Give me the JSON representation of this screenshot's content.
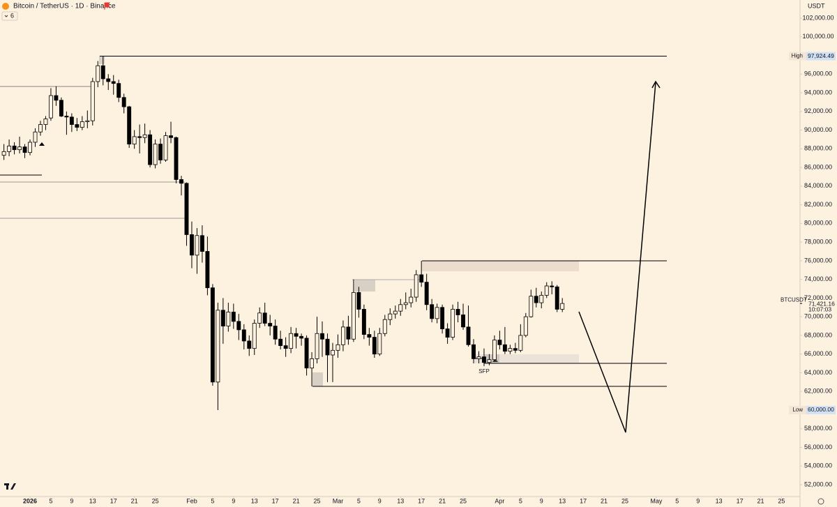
{
  "chart_data": {
    "type": "candlestick",
    "title": "Bitcoin / TetherUS · 1D · Binance",
    "indicator_count": 6,
    "ylabel": "USDT",
    "annotation": "SFP",
    "x": [
      -5,
      -4,
      -3,
      -2,
      -1,
      0,
      1,
      2,
      3,
      4,
      5,
      6,
      7,
      8,
      9,
      10,
      11,
      12,
      13,
      14,
      15,
      16,
      17,
      18,
      19,
      20,
      21,
      22,
      23,
      24,
      25,
      26,
      27,
      28,
      29,
      30,
      31,
      32,
      33,
      34,
      35,
      36,
      37,
      38,
      39,
      40,
      41,
      42,
      43,
      44,
      45,
      46,
      47,
      48,
      49,
      50,
      51,
      52,
      53,
      54,
      55,
      56,
      57,
      58,
      59,
      60,
      61,
      62,
      63,
      64,
      65,
      66,
      67,
      68,
      69,
      70,
      71,
      72,
      73,
      74,
      75,
      76,
      77,
      78,
      79,
      80,
      81,
      82,
      83,
      84,
      85,
      86,
      87,
      88,
      89,
      90,
      91,
      92,
      93,
      94,
      95,
      96,
      97,
      98,
      99,
      100,
      101,
      102
    ],
    "open": [
      87300,
      87700,
      88300,
      87900,
      88200,
      87600,
      88700,
      89800,
      90600,
      91300,
      93700,
      93200,
      91500,
      91400,
      90600,
      90300,
      90900,
      91000,
      95200,
      96900,
      95500,
      95200,
      95000,
      93500,
      92500,
      88500,
      89300,
      89200,
      89500,
      86300,
      88500,
      86800,
      89400,
      89200,
      84700,
      84300,
      78800,
      76600,
      78700,
      77000,
      73100,
      63000,
      70700,
      69000,
      70500,
      69500,
      68600,
      67400,
      66600,
      69300,
      70400,
      69300,
      69000,
      67600,
      66900,
      66600,
      68200,
      67900,
      67700,
      64500,
      65500,
      68200,
      67600,
      65900,
      66400,
      67000,
      68900,
      67600,
      72600,
      70800,
      68100,
      67800,
      66000,
      68200,
      69700,
      70300,
      70600,
      71300,
      71500,
      72100,
      74500,
      73700,
      71300,
      69800,
      71000,
      68700,
      67800,
      70800,
      70200,
      68900,
      67000,
      65500,
      65700,
      65100,
      65400,
      67500,
      67000,
      66300,
      66600,
      66400,
      68000,
      70000,
      72200,
      71500,
      72300,
      73300,
      73200,
      70800
    ],
    "high": [
      88500,
      89000,
      88700,
      89300,
      88500,
      89000,
      90200,
      91000,
      91500,
      94500,
      94700,
      93500,
      92000,
      91800,
      91300,
      91500,
      92100,
      95600,
      97400,
      97924.49,
      96000,
      95900,
      95400,
      93900,
      92600,
      90000,
      90600,
      90700,
      90000,
      89000,
      89100,
      89800,
      90900,
      89300,
      85100,
      84400,
      80200,
      79500,
      79800,
      78600,
      73500,
      71500,
      72000,
      71500,
      71400,
      70300,
      69200,
      68000,
      69700,
      71000,
      71500,
      70200,
      69700,
      68500,
      67800,
      68900,
      68800,
      68200,
      68000,
      66200,
      70000,
      69500,
      68200,
      67200,
      68100,
      69600,
      70100,
      74000,
      73200,
      71300,
      68800,
      68500,
      68800,
      70200,
      70900,
      71200,
      71900,
      72600,
      73000,
      75000,
      75990,
      74600,
      71900,
      71400,
      71300,
      69300,
      71300,
      71600,
      71400,
      71200,
      67600,
      66300,
      66600,
      66000,
      68000,
      68500,
      68900,
      67000,
      67200,
      69200,
      70400,
      72900,
      73100,
      72700,
      73700,
      73800,
      73400,
      72000
    ],
    "low": [
      86800,
      87200,
      87400,
      87500,
      87000,
      87300,
      88200,
      89400,
      90000,
      91000,
      92600,
      91400,
      89500,
      89800,
      89900,
      90000,
      90200,
      90500,
      94600,
      94800,
      94300,
      93800,
      93000,
      91800,
      88100,
      88000,
      87500,
      88600,
      86000,
      85900,
      86400,
      86600,
      88600,
      84300,
      83000,
      77600,
      75200,
      74600,
      75800,
      72300,
      62600,
      60000,
      67100,
      68400,
      68700,
      67500,
      66500,
      65800,
      65900,
      68800,
      69000,
      68000,
      67000,
      66500,
      65700,
      66100,
      66600,
      66900,
      63700,
      62540,
      65000,
      65700,
      63000,
      63000,
      65600,
      66300,
      67000,
      67300,
      69900,
      67600,
      66900,
      65600,
      65800,
      67900,
      69100,
      69800,
      70100,
      70800,
      71000,
      71600,
      73200,
      70700,
      69400,
      69300,
      68200,
      67100,
      67500,
      69400,
      68600,
      66800,
      65000,
      65000,
      64700,
      64800,
      65200,
      66500,
      66000,
      66000,
      66100,
      66200,
      67800,
      69900,
      71000,
      70900,
      72000,
      72400,
      70500,
      70500
    ],
    "close": [
      87700,
      88300,
      87900,
      88200,
      87600,
      88700,
      89800,
      90600,
      91200,
      93700,
      93200,
      91500,
      91400,
      90600,
      90300,
      90900,
      91000,
      95200,
      96900,
      95500,
      95200,
      95000,
      93500,
      92500,
      88500,
      89300,
      89200,
      89500,
      86300,
      88500,
      86800,
      89400,
      89200,
      84700,
      84300,
      78800,
      76600,
      78700,
      77000,
      73100,
      63000,
      70700,
      69000,
      70500,
      69500,
      68600,
      67400,
      66600,
      69300,
      70400,
      69300,
      69000,
      67600,
      66900,
      66600,
      68200,
      67900,
      67700,
      64500,
      65500,
      68200,
      67600,
      65900,
      66400,
      67000,
      68900,
      67600,
      72600,
      70800,
      68100,
      67800,
      66000,
      68200,
      69700,
      70300,
      70600,
      71300,
      71500,
      72100,
      74500,
      73700,
      71300,
      69800,
      71000,
      68700,
      67800,
      70800,
      70200,
      68900,
      67000,
      65500,
      65700,
      65100,
      65400,
      67500,
      67000,
      66300,
      66600,
      66400,
      68000,
      70000,
      72200,
      71500,
      72300,
      73300,
      73200,
      70800,
      71421.16
    ],
    "up_color": "#fdf1e0",
    "down_color": "#000000",
    "xlim": [
      -5.75,
      147.55
    ],
    "ylim": [
      50730,
      103943
    ],
    "xticks": [
      {
        "value": 0,
        "label": "2026"
      },
      {
        "value": 4,
        "label": "5"
      },
      {
        "value": 8,
        "label": "9"
      },
      {
        "value": 12,
        "label": "13"
      },
      {
        "value": 16,
        "label": "17"
      },
      {
        "value": 20,
        "label": "21"
      },
      {
        "value": 24,
        "label": "25"
      },
      {
        "value": 31,
        "label": "Feb"
      },
      {
        "value": 35,
        "label": "5"
      },
      {
        "value": 39,
        "label": "9"
      },
      {
        "value": 43,
        "label": "13"
      },
      {
        "value": 47,
        "label": "17"
      },
      {
        "value": 51,
        "label": "21"
      },
      {
        "value": 55,
        "label": "25"
      },
      {
        "value": 59,
        "label": "Mar"
      },
      {
        "value": 63,
        "label": "5"
      },
      {
        "value": 67,
        "label": "9"
      },
      {
        "value": 71,
        "label": "13"
      },
      {
        "value": 75,
        "label": "17"
      },
      {
        "value": 79,
        "label": "21"
      },
      {
        "value": 83,
        "label": "25"
      },
      {
        "value": 90,
        "label": "Apr"
      },
      {
        "value": 94,
        "label": "5"
      },
      {
        "value": 98,
        "label": "9"
      },
      {
        "value": 102,
        "label": "13"
      },
      {
        "value": 106,
        "label": "17"
      },
      {
        "value": 110,
        "label": "21"
      },
      {
        "value": 114,
        "label": "25"
      },
      {
        "value": 120,
        "label": "May"
      },
      {
        "value": 124,
        "label": "5"
      },
      {
        "value": 128,
        "label": "9"
      },
      {
        "value": 132,
        "label": "13"
      },
      {
        "value": 136,
        "label": "17"
      },
      {
        "value": 140,
        "label": "21"
      },
      {
        "value": 144,
        "label": "25"
      }
    ],
    "yticks": [
      {
        "value": 52000,
        "label": "52,000.00"
      },
      {
        "value": 54000,
        "label": "54,000.00"
      },
      {
        "value": 56000,
        "label": "56,000.00"
      },
      {
        "value": 58000,
        "label": "58,000.00"
      },
      {
        "value": 60000,
        "label": "60,000.00"
      },
      {
        "value": 62000,
        "label": "62,000.00"
      },
      {
        "value": 64000,
        "label": "64,000.00"
      },
      {
        "value": 66000,
        "label": "66,000.00"
      },
      {
        "value": 68000,
        "label": "68,000.00"
      },
      {
        "value": 70000,
        "label": "70,000.00"
      },
      {
        "value": 72000,
        "label": "72,000.00"
      },
      {
        "value": 74000,
        "label": "74,000.00"
      },
      {
        "value": 76000,
        "label": "76,000.00"
      },
      {
        "value": 78000,
        "label": "78,000.00"
      },
      {
        "value": 80000,
        "label": "80,000.00"
      },
      {
        "value": 82000,
        "label": "82,000.00"
      },
      {
        "value": 84000,
        "label": "84,000.00"
      },
      {
        "value": 86000,
        "label": "86,000.00"
      },
      {
        "value": 88000,
        "label": "88,000.00"
      },
      {
        "value": 90000,
        "label": "90,000.00"
      },
      {
        "value": 92000,
        "label": "92,000.00"
      },
      {
        "value": 94000,
        "label": "94,000.00"
      },
      {
        "value": 96000,
        "label": "96,000.00"
      },
      {
        "value": 100000,
        "label": "100,000.00"
      },
      {
        "value": 102000,
        "label": "102,000.00"
      }
    ],
    "price_labels": [
      {
        "name": "High",
        "value": 97924.49,
        "label": "97,924.49"
      },
      {
        "name": "Low",
        "value": 60000,
        "label": "60,000.00"
      },
      {
        "name": "BTCUSDT",
        "value": 71421.16,
        "label": "71,421.16",
        "countdown": "10:07:03"
      }
    ],
    "grid": false
  }
}
